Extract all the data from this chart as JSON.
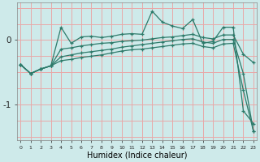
{
  "xlabel": "Humidex (Indice chaleur)",
  "bg_color": "#ceeaea",
  "grid_color": "#e8a8a8",
  "line_color": "#2d7a6a",
  "x": [
    0,
    1,
    2,
    3,
    4,
    5,
    6,
    7,
    8,
    9,
    10,
    11,
    12,
    13,
    14,
    15,
    16,
    17,
    18,
    19,
    20,
    21,
    22,
    23
  ],
  "l1": [
    -0.38,
    -0.52,
    -0.45,
    -0.4,
    0.2,
    -0.05,
    0.05,
    0.06,
    0.04,
    0.06,
    0.09,
    0.1,
    0.09,
    0.45,
    0.28,
    0.22,
    0.18,
    0.32,
    -0.05,
    -0.02,
    0.2,
    0.2,
    -1.1,
    -1.3
  ],
  "l2": [
    -0.38,
    -0.52,
    -0.45,
    -0.4,
    -0.14,
    -0.12,
    -0.09,
    -0.07,
    -0.05,
    -0.04,
    -0.02,
    -0.01,
    0.0,
    0.02,
    0.04,
    0.05,
    0.07,
    0.09,
    0.04,
    0.02,
    0.08,
    0.08,
    -0.22,
    -0.35
  ],
  "l3": [
    -0.38,
    -0.52,
    -0.45,
    -0.4,
    -0.26,
    -0.23,
    -0.2,
    -0.18,
    -0.16,
    -0.14,
    -0.11,
    -0.09,
    -0.07,
    -0.05,
    -0.03,
    -0.01,
    0.01,
    0.02,
    -0.03,
    -0.05,
    0.01,
    0.01,
    -0.52,
    -1.42
  ],
  "l4": [
    -0.38,
    -0.52,
    -0.45,
    -0.4,
    -0.32,
    -0.3,
    -0.27,
    -0.25,
    -0.23,
    -0.2,
    -0.17,
    -0.15,
    -0.14,
    -0.12,
    -0.1,
    -0.08,
    -0.06,
    -0.05,
    -0.1,
    -0.12,
    -0.06,
    -0.05,
    -0.78,
    -1.42
  ],
  "ylim": [
    -1.55,
    0.58
  ],
  "yticks": [
    0,
    -1
  ],
  "xlim": [
    -0.3,
    23.3
  ]
}
